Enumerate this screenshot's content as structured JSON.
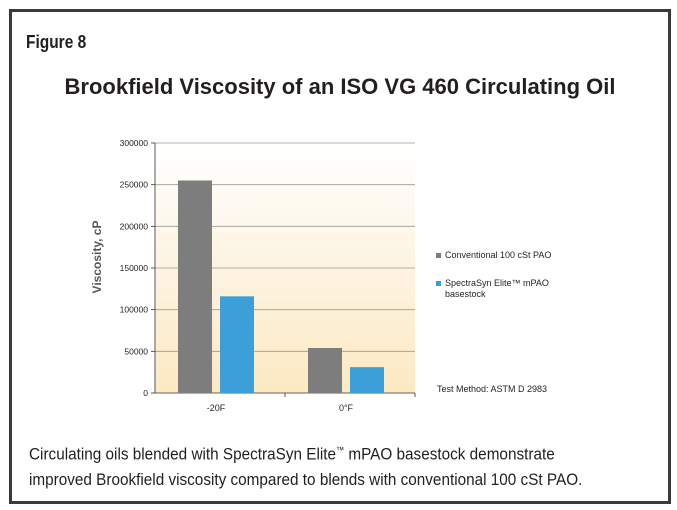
{
  "figure_label": "Figure 8",
  "caption_part1": "Circulating oils blended with SpectraSyn Elite",
  "caption_tm": "™",
  "caption_part2": " mPAO basestock demonstrate",
  "caption_line2": "improved Brookfield viscosity compared to blends with conventional 100 cSt PAO.",
  "test_method": "Test Method: ASTM D 2983",
  "colors": {
    "frame": "#3a3a3a",
    "conventional": "#7d7d7d",
    "spectrasyn": "#3d9fd8",
    "plot_top": "#ffffff",
    "plot_bottom": "#fbe9c2"
  },
  "chart_data": {
    "type": "bar",
    "title": "Brookfield Viscosity of an ISO VG 460 Circulating Oil",
    "xlabel": "",
    "ylabel": "Viscosity, cP",
    "categories": [
      "-20F",
      "0°F"
    ],
    "series": [
      {
        "name": "Conventional 100 cSt PAO",
        "values": [
          255000,
          54000
        ]
      },
      {
        "name": "SpectraSyn Elite™ mPAO basestock",
        "values": [
          116000,
          31000
        ]
      }
    ],
    "ylim": [
      0,
      300000
    ],
    "yticks": [
      0,
      50000,
      100000,
      150000,
      200000,
      250000,
      300000
    ],
    "ytick_labels": [
      "0",
      "50000",
      "100000",
      "150000",
      "200000",
      "250000",
      "300000"
    ],
    "grid": true,
    "legend_position": "right"
  }
}
